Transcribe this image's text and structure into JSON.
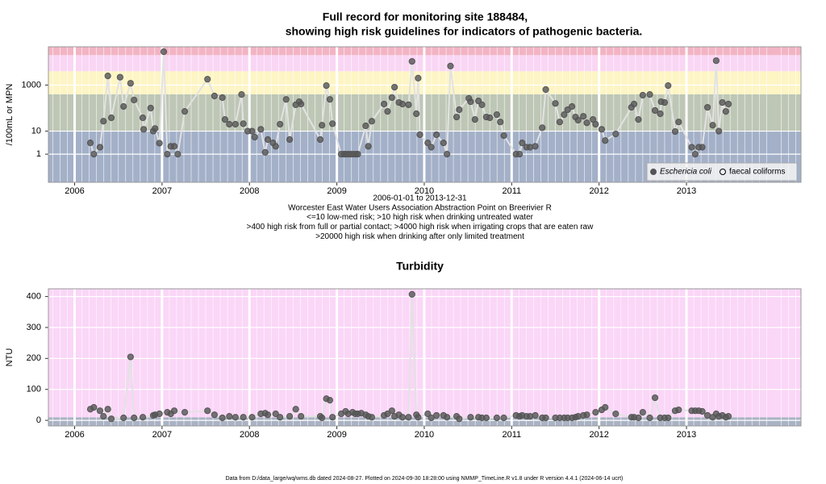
{
  "title": [
    "Full record for monitoring site 188484,",
    "showing high risk guidelines for indicators of pathogenic bacteria."
  ],
  "footer": "Data from D:/data_large/wq/wms.db dated 2024-08-27. Plotted on 2024-09-30 18:28:00 using NMMP_TimeLine.R v1.8 under R version 4.4.1 (2024-06-14 ucrt)",
  "chart_data": [
    {
      "type": "line",
      "log_y": true,
      "grid": true,
      "legend": "bottom-right",
      "ylabel": "/100mL or MPN",
      "notes": [
        "2006-01-01 to 2013-12-31",
        "Worcester East Water Users Association Abstraction Point on Breerivier R",
        "<=10 low-med risk; >10 high risk when drinking untreated water",
        ">400 high risk from full or partial contact; >4000 high risk when irrigating crops that are eaten raw",
        ">20000 high risk when drinking after only limited treatment"
      ],
      "xlim": [
        2005.7,
        2014.31
      ],
      "xticks": [
        2006,
        2007,
        2008,
        2009,
        2010,
        2011,
        2012,
        2013
      ],
      "ylim": [
        0.06,
        46000
      ],
      "yticks": [
        1,
        10,
        1000
      ],
      "bands": [
        {
          "from": 0.06,
          "to": 10,
          "color": "#a3b0c8"
        },
        {
          "from": 10,
          "to": 400,
          "color": "#bec7b6"
        },
        {
          "from": 400,
          "to": 4000,
          "color": "#fdf5c4"
        },
        {
          "from": 4000,
          "to": 20000,
          "color": "#f9d6f4"
        },
        {
          "from": 20000,
          "to": 46000,
          "color": "#f2b4c4"
        }
      ],
      "series": [
        {
          "name": "Eschericia coli",
          "marker": "filled",
          "color": "#555555",
          "x": [
            2006.18,
            2006.22,
            2006.29,
            2006.33,
            2006.38,
            2006.42,
            2006.52,
            2006.56,
            2006.64,
            2006.68,
            2006.78,
            2006.79,
            2006.87,
            2006.9,
            2006.92,
            2006.97,
            2007.02,
            2007.06,
            2007.1,
            2007.14,
            2007.18,
            2007.26,
            2007.52,
            2007.6,
            2007.69,
            2007.72,
            2007.77,
            2007.84,
            2007.91,
            2007.93,
            2007.98,
            2008.03,
            2008.06,
            2008.13,
            2008.18,
            2008.21,
            2008.27,
            2008.3,
            2008.35,
            2008.42,
            2008.46,
            2008.53,
            2008.57,
            2008.59,
            2008.81,
            2008.83,
            2008.88,
            2008.92,
            2008.95,
            2009.05,
            2009.08,
            2009.1,
            2009.13,
            2009.16,
            2009.19,
            2009.22,
            2009.24,
            2009.33,
            2009.36,
            2009.4,
            2009.54,
            2009.58,
            2009.63,
            2009.66,
            2009.71,
            2009.75,
            2009.82,
            2009.86,
            2009.91,
            2009.93,
            2009.95,
            2010.04,
            2010.08,
            2010.14,
            2010.22,
            2010.26,
            2010.3,
            2010.37,
            2010.4,
            2010.51,
            2010.53,
            2010.58,
            2010.62,
            2010.66,
            2010.71,
            2010.75,
            2010.83,
            2010.87,
            2010.91,
            2011.05,
            2011.09,
            2011.12,
            2011.17,
            2011.21,
            2011.27,
            2011.35,
            2011.39,
            2011.5,
            2011.55,
            2011.6,
            2011.64,
            2011.69,
            2011.73,
            2011.76,
            2011.82,
            2011.86,
            2011.93,
            2011.96,
            2012.03,
            2012.07,
            2012.19,
            2012.37,
            2012.4,
            2012.45,
            2012.5,
            2012.58,
            2012.64,
            2012.7,
            2012.71,
            2012.75,
            2012.79,
            2012.87,
            2012.91,
            2013.06,
            2013.1,
            2013.14,
            2013.18,
            2013.24,
            2013.3,
            2013.34,
            2013.37,
            2013.41,
            2013.45,
            2013.48
          ],
          "values": [
            3.1,
            1,
            2,
            27,
            2500,
            38,
            2200,
            118,
            1200,
            225,
            38,
            12,
            100,
            10,
            13,
            3,
            28000,
            1,
            2.2,
            2.2,
            1,
            72,
            1800,
            335,
            285,
            32,
            20,
            20,
            390,
            21,
            10,
            10,
            5.5,
            12,
            1.2,
            4.3,
            3.1,
            2.2,
            20,
            240,
            4.3,
            140,
            190,
            150,
            4.3,
            18,
            950,
            240,
            21,
            1,
            1,
            1,
            1,
            1,
            1,
            1,
            1,
            17,
            2.2,
            27,
            150,
            72,
            285,
            810,
            175,
            150,
            140,
            10700,
            57,
            2000,
            7,
            3.1,
            2,
            7,
            3.1,
            1,
            6700,
            41,
            85,
            265,
            190,
            32,
            205,
            140,
            41,
            38,
            52,
            25,
            6.4,
            1,
            1,
            3.1,
            2,
            2,
            2.2,
            14,
            640,
            160,
            25,
            52,
            85,
            118,
            41,
            30,
            44,
            23,
            32,
            20,
            12,
            3.9,
            7.5,
            108,
            150,
            32,
            365,
            390,
            79,
            57,
            190,
            175,
            950,
            9.6,
            25,
            2,
            1,
            2,
            2,
            108,
            18,
            11500,
            10,
            175,
            72,
            150
          ]
        },
        {
          "name": "faecal coliforms",
          "marker": "open",
          "color": "#000000",
          "x": [],
          "values": []
        }
      ]
    },
    {
      "type": "line",
      "log_y": false,
      "grid": true,
      "title": "Turbidity",
      "ylabel": "NTU",
      "xlim": [
        2005.7,
        2014.31
      ],
      "xticks": [
        2006,
        2007,
        2008,
        2009,
        2010,
        2011,
        2012,
        2013
      ],
      "ylim": [
        -18,
        425
      ],
      "yticks": [
        0,
        100,
        200,
        300,
        400
      ],
      "bands": [
        {
          "from": -18,
          "to": 10,
          "color": "#aab3c4"
        },
        {
          "from": 10,
          "to": 425,
          "color": "#fad6f7"
        }
      ],
      "series": [
        {
          "name": "Turbidity",
          "marker": "filled",
          "color": "#555555",
          "x": [
            2006.18,
            2006.22,
            2006.29,
            2006.33,
            2006.38,
            2006.42,
            2006.56,
            2006.64,
            2006.68,
            2006.78,
            2006.9,
            2006.92,
            2006.97,
            2007.06,
            2007.1,
            2007.14,
            2007.26,
            2007.52,
            2007.6,
            2007.69,
            2007.77,
            2007.84,
            2007.93,
            2008.03,
            2008.13,
            2008.18,
            2008.21,
            2008.3,
            2008.35,
            2008.46,
            2008.53,
            2008.59,
            2008.81,
            2008.83,
            2008.88,
            2008.92,
            2008.95,
            2009.05,
            2009.1,
            2009.13,
            2009.18,
            2009.21,
            2009.24,
            2009.28,
            2009.33,
            2009.36,
            2009.4,
            2009.54,
            2009.58,
            2009.63,
            2009.66,
            2009.71,
            2009.75,
            2009.82,
            2009.86,
            2009.91,
            2009.93,
            2010.04,
            2010.08,
            2010.14,
            2010.22,
            2010.26,
            2010.37,
            2010.4,
            2010.53,
            2010.62,
            2010.66,
            2010.71,
            2010.83,
            2010.91,
            2011.05,
            2011.09,
            2011.12,
            2011.17,
            2011.21,
            2011.27,
            2011.35,
            2011.39,
            2011.5,
            2011.55,
            2011.6,
            2011.64,
            2011.69,
            2011.73,
            2011.76,
            2011.82,
            2011.86,
            2011.96,
            2012.03,
            2012.07,
            2012.19,
            2012.37,
            2012.4,
            2012.45,
            2012.5,
            2012.58,
            2012.64,
            2012.7,
            2012.75,
            2012.79,
            2012.87,
            2012.91,
            2013.06,
            2013.1,
            2013.14,
            2013.18,
            2013.24,
            2013.3,
            2013.34,
            2013.37,
            2013.41,
            2013.45,
            2013.48
          ],
          "values": [
            36,
            42,
            31,
            13,
            36,
            5,
            8,
            205,
            8,
            10,
            16,
            18,
            21,
            26,
            21,
            31,
            26,
            31,
            18,
            8,
            13,
            10,
            10,
            10,
            21,
            23,
            18,
            21,
            10,
            13,
            36,
            13,
            13,
            8,
            70,
            65,
            10,
            21,
            29,
            21,
            26,
            21,
            21,
            23,
            18,
            13,
            10,
            16,
            21,
            31,
            13,
            18,
            10,
            10,
            407,
            18,
            10,
            21,
            8,
            16,
            16,
            10,
            13,
            5,
            10,
            10,
            8,
            8,
            8,
            8,
            16,
            13,
            16,
            13,
            13,
            16,
            8,
            8,
            8,
            8,
            8,
            8,
            8,
            10,
            13,
            16,
            18,
            26,
            34,
            42,
            21,
            10,
            10,
            8,
            26,
            8,
            73,
            8,
            8,
            8,
            31,
            34,
            31,
            31,
            31,
            29,
            16,
            10,
            21,
            13,
            16,
            10,
            13
          ]
        }
      ]
    }
  ]
}
